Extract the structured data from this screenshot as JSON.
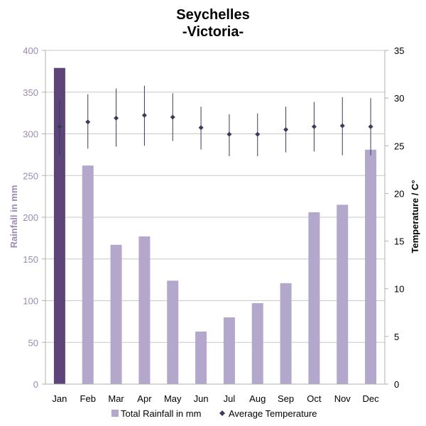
{
  "chart_data": {
    "type": "bar+line",
    "title": "Seychelles",
    "subtitle": "-Victoria-",
    "categories": [
      "Jan",
      "Feb",
      "Mar",
      "Apr",
      "May",
      "Jun",
      "Jul",
      "Aug",
      "Sep",
      "Oct",
      "Nov",
      "Dec"
    ],
    "rainfall": {
      "name": "Total Rainfall in mm",
      "values": [
        379,
        262,
        167,
        177,
        124,
        63,
        80,
        97,
        121,
        206,
        215,
        281
      ],
      "color": "#b4a7cc",
      "highlight_index": 0,
      "highlight_color": "#5d4479"
    },
    "temperature": {
      "name": "Average Temperature",
      "values": [
        27.0,
        27.5,
        27.9,
        28.2,
        28.0,
        26.9,
        26.2,
        26.2,
        26.7,
        27.0,
        27.1,
        27.0
      ],
      "min": [
        24.0,
        24.7,
        24.9,
        25.0,
        25.5,
        24.6,
        23.9,
        23.9,
        24.3,
        24.4,
        24.0,
        24.0
      ],
      "max": [
        29.8,
        30.4,
        31.0,
        31.3,
        30.5,
        29.1,
        28.3,
        28.4,
        29.1,
        29.6,
        30.1,
        30.0
      ],
      "color": "#3a3a5a"
    },
    "y_left": {
      "label": "Rainfall  in mm",
      "min": 0,
      "max": 400,
      "ticks": [
        0,
        50,
        100,
        150,
        200,
        250,
        300,
        350,
        400
      ]
    },
    "y_right": {
      "label": "Temperature / C°",
      "min": 0,
      "max": 35,
      "ticks": [
        0,
        5,
        10,
        15,
        20,
        25,
        30,
        35
      ]
    },
    "grid": true,
    "legend_position": "bottom"
  }
}
